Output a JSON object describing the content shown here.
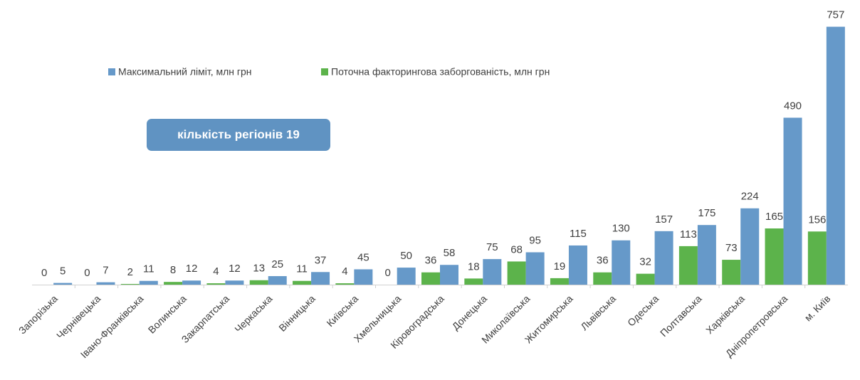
{
  "chart_data": {
    "type": "bar",
    "categories": [
      "Запорізька",
      "Чернівецька",
      "Івано-Франківська",
      "Волинська",
      "Закарпатська",
      "Черкаська",
      "Вінницька",
      "Київська",
      "Хмельницька",
      "Кіровоградська",
      "Донецька",
      "Миколаївська",
      "Житомирська",
      "Львівська",
      "Одеська",
      "Полтавська",
      "Харківська",
      "Дніпропетровська",
      "м. Київ"
    ],
    "series": [
      {
        "name": "Поточна факторингова заборгованість, млн грн",
        "color": "#5cb34b",
        "values": [
          0,
          0,
          2,
          8,
          4,
          13,
          11,
          4,
          0,
          36,
          18,
          68,
          19,
          36,
          32,
          113,
          73,
          165,
          156
        ]
      },
      {
        "name": "Максимальний ліміт, млн грн",
        "color": "#6699c9",
        "values": [
          5,
          7,
          11,
          12,
          12,
          25,
          37,
          45,
          50,
          58,
          75,
          95,
          115,
          130,
          157,
          175,
          224,
          490,
          757
        ]
      }
    ],
    "legend_order": [
      1,
      0
    ],
    "annotation": "кількість регіонів 19",
    "ylim": [
      0,
      800
    ]
  }
}
